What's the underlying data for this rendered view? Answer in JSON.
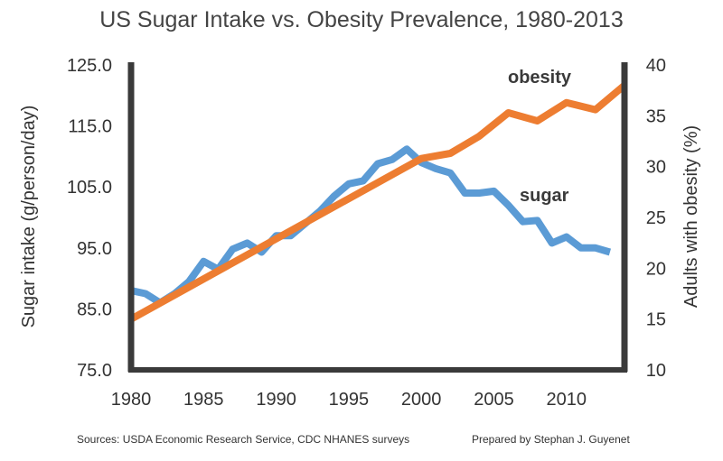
{
  "chart_data": {
    "type": "line",
    "title": "US Sugar Intake vs. Obesity Prevalence, 1980-2013",
    "xlabel": "",
    "ylabel_left": "Sugar intake (g/person/day)",
    "ylabel_right": "Adults with obesity (%)",
    "xlim": [
      1980,
      2014
    ],
    "ylim_left": [
      75,
      125
    ],
    "ylim_right": [
      10,
      40
    ],
    "x_ticks": [
      "1980",
      "1985",
      "1990",
      "1995",
      "2000",
      "2005",
      "2010"
    ],
    "y_left_ticks": [
      "125.0",
      "115.0",
      "105.0",
      "95.0",
      "85.0",
      "75.0"
    ],
    "y_right_ticks": [
      "40",
      "35",
      "30",
      "25",
      "20",
      "15",
      "10"
    ],
    "grid": false,
    "series": [
      {
        "name": "sugar",
        "axis": "left",
        "color": "#5b9bd5",
        "x": [
          1980,
          1981,
          1982,
          1983,
          1984,
          1985,
          1986,
          1987,
          1988,
          1989,
          1990,
          1991,
          1992,
          1993,
          1994,
          1995,
          1996,
          1997,
          1998,
          1999,
          2000,
          2001,
          2002,
          2003,
          2004,
          2005,
          2006,
          2007,
          2008,
          2009,
          2010,
          2011,
          2012,
          2013
        ],
        "values": [
          88.0,
          87.5,
          86.0,
          87.5,
          89.5,
          92.8,
          91.5,
          94.8,
          95.8,
          94.3,
          97.0,
          97.0,
          99.0,
          101.0,
          103.5,
          105.5,
          106.0,
          108.8,
          109.5,
          111.2,
          109.0,
          108.0,
          107.3,
          104.0,
          104.0,
          104.3,
          102.0,
          99.3,
          99.5,
          95.8,
          96.8,
          95.0,
          95.0,
          94.3
        ]
      },
      {
        "name": "obesity",
        "axis": "right",
        "color": "#ed7d31",
        "x": [
          1980,
          2000,
          2002,
          2004,
          2006,
          2008,
          2010,
          2012,
          2014
        ],
        "values": [
          15.0,
          30.8,
          31.3,
          33.0,
          35.3,
          34.5,
          36.3,
          35.6,
          38.0
        ]
      }
    ]
  },
  "series_labels": {
    "obesity": "obesity",
    "sugar": "sugar"
  },
  "footer": {
    "source": "Sources: USDA Economic Research Service, CDC NHANES surveys",
    "credit": "Prepared by Stephan J. Guyenet"
  }
}
